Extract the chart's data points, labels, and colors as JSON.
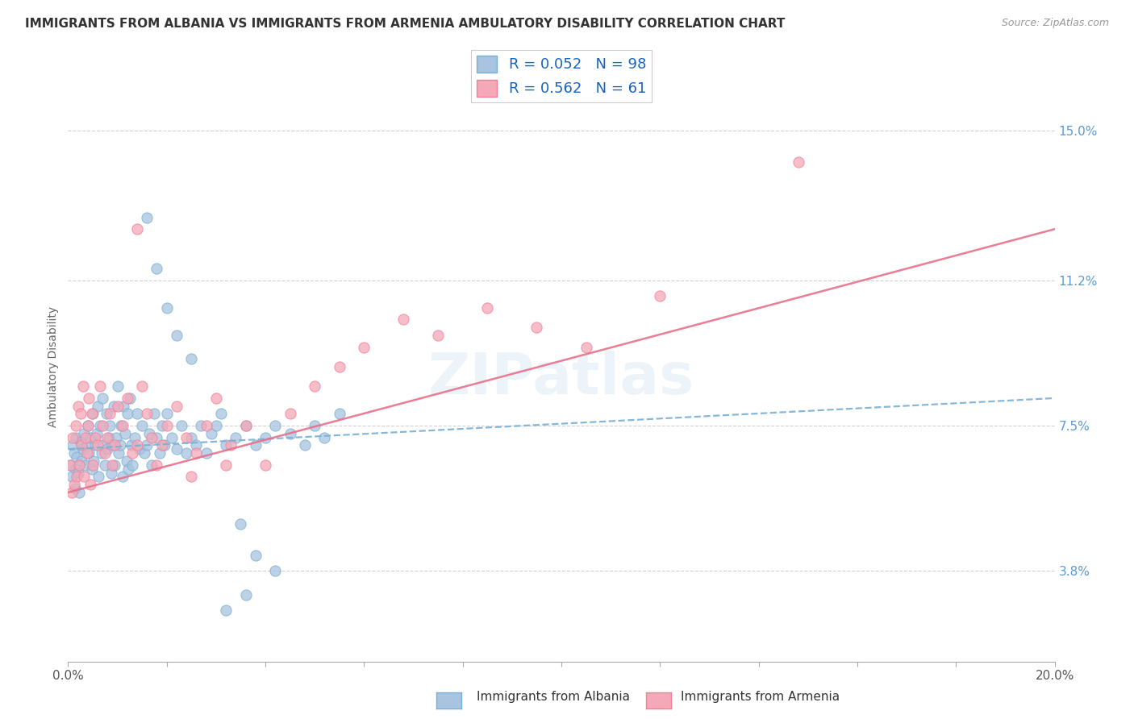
{
  "title": "IMMIGRANTS FROM ALBANIA VS IMMIGRANTS FROM ARMENIA AMBULATORY DISABILITY CORRELATION CHART",
  "source": "Source: ZipAtlas.com",
  "xlabel_vals": [
    0.0,
    2.0,
    4.0,
    6.0,
    8.0,
    10.0,
    12.0,
    14.0,
    16.0,
    18.0,
    20.0
  ],
  "xlabel_show": [
    0.0,
    20.0
  ],
  "ylabel_ticks": [
    "3.8%",
    "7.5%",
    "11.2%",
    "15.0%"
  ],
  "ylabel_vals": [
    3.8,
    7.5,
    11.2,
    15.0
  ],
  "ylabel_label": "Ambulatory Disability",
  "xlim": [
    0.0,
    20.0
  ],
  "ylim": [
    1.5,
    16.5
  ],
  "legend_albania_r": "0.052",
  "legend_albania_n": "98",
  "legend_armenia_r": "0.562",
  "legend_armenia_n": "61",
  "albania_color": "#a8c4e0",
  "armenia_color": "#f4a8b8",
  "albania_edge_color": "#7ab0d4",
  "armenia_edge_color": "#f48098",
  "albania_line_color": "#7ab0d4",
  "armenia_line_color": "#e8708a",
  "background_color": "#ffffff",
  "watermark": "ZIPatlas",
  "albania_scatter_x": [
    0.05,
    0.08,
    0.1,
    0.12,
    0.14,
    0.15,
    0.16,
    0.18,
    0.2,
    0.22,
    0.25,
    0.28,
    0.3,
    0.32,
    0.35,
    0.38,
    0.4,
    0.42,
    0.45,
    0.48,
    0.5,
    0.52,
    0.55,
    0.58,
    0.6,
    0.62,
    0.65,
    0.68,
    0.7,
    0.72,
    0.75,
    0.78,
    0.8,
    0.82,
    0.85,
    0.88,
    0.9,
    0.92,
    0.95,
    0.98,
    1.0,
    1.02,
    1.05,
    1.08,
    1.1,
    1.12,
    1.15,
    1.18,
    1.2,
    1.22,
    1.25,
    1.28,
    1.3,
    1.35,
    1.4,
    1.45,
    1.5,
    1.55,
    1.6,
    1.65,
    1.7,
    1.75,
    1.8,
    1.85,
    1.9,
    1.95,
    2.0,
    2.1,
    2.2,
    2.3,
    2.4,
    2.5,
    2.6,
    2.7,
    2.8,
    2.9,
    3.0,
    3.1,
    3.2,
    3.4,
    3.6,
    3.8,
    4.0,
    4.2,
    4.5,
    4.8,
    5.0,
    5.2,
    5.5,
    1.6,
    1.8,
    2.0,
    2.2,
    2.5,
    3.8,
    4.2,
    3.5,
    3.6,
    3.2
  ],
  "albania_scatter_y": [
    6.5,
    6.2,
    7.0,
    6.8,
    5.9,
    7.2,
    6.4,
    6.7,
    6.3,
    5.8,
    7.1,
    6.6,
    6.9,
    7.3,
    6.5,
    7.0,
    7.5,
    6.8,
    7.2,
    6.4,
    7.8,
    6.6,
    7.0,
    7.3,
    8.0,
    6.2,
    7.5,
    6.8,
    8.2,
    7.0,
    6.5,
    7.8,
    6.9,
    7.2,
    7.5,
    6.3,
    7.0,
    8.0,
    6.5,
    7.2,
    8.5,
    6.8,
    7.0,
    7.5,
    6.2,
    8.0,
    7.3,
    6.6,
    7.8,
    6.4,
    8.2,
    7.0,
    6.5,
    7.2,
    7.8,
    6.9,
    7.5,
    6.8,
    7.0,
    7.3,
    6.5,
    7.8,
    7.2,
    6.8,
    7.5,
    7.0,
    7.8,
    7.2,
    6.9,
    7.5,
    6.8,
    7.2,
    7.0,
    7.5,
    6.8,
    7.3,
    7.5,
    7.8,
    7.0,
    7.2,
    7.5,
    7.0,
    7.2,
    7.5,
    7.3,
    7.0,
    7.5,
    7.2,
    7.8,
    12.8,
    11.5,
    10.5,
    9.8,
    9.2,
    4.2,
    3.8,
    5.0,
    3.2,
    2.8
  ],
  "armenia_scatter_x": [
    0.05,
    0.08,
    0.1,
    0.12,
    0.15,
    0.18,
    0.2,
    0.22,
    0.25,
    0.28,
    0.3,
    0.32,
    0.35,
    0.38,
    0.4,
    0.42,
    0.45,
    0.48,
    0.5,
    0.55,
    0.6,
    0.65,
    0.7,
    0.75,
    0.8,
    0.85,
    0.9,
    0.95,
    1.0,
    1.1,
    1.2,
    1.3,
    1.4,
    1.5,
    1.6,
    1.7,
    1.8,
    1.9,
    2.0,
    2.2,
    2.4,
    2.6,
    2.8,
    3.0,
    3.3,
    3.6,
    4.0,
    4.5,
    5.0,
    5.5,
    6.0,
    6.8,
    7.5,
    8.5,
    9.5,
    10.5,
    12.0,
    14.8,
    3.2,
    2.5,
    1.4
  ],
  "armenia_scatter_y": [
    6.5,
    5.8,
    7.2,
    6.0,
    7.5,
    6.2,
    8.0,
    6.5,
    7.8,
    7.0,
    8.5,
    6.2,
    7.2,
    6.8,
    7.5,
    8.2,
    6.0,
    7.8,
    6.5,
    7.2,
    7.0,
    8.5,
    7.5,
    6.8,
    7.2,
    7.8,
    6.5,
    7.0,
    8.0,
    7.5,
    8.2,
    6.8,
    7.0,
    8.5,
    7.8,
    7.2,
    6.5,
    7.0,
    7.5,
    8.0,
    7.2,
    6.8,
    7.5,
    8.2,
    7.0,
    7.5,
    6.5,
    7.8,
    8.5,
    9.0,
    9.5,
    10.2,
    9.8,
    10.5,
    10.0,
    9.5,
    10.8,
    14.2,
    6.5,
    6.2,
    12.5
  ],
  "albania_trend_x": [
    0.0,
    20.0
  ],
  "albania_trend_y": [
    6.9,
    8.2
  ],
  "armenia_trend_x": [
    0.0,
    20.0
  ],
  "armenia_trend_y": [
    5.8,
    12.5
  ]
}
